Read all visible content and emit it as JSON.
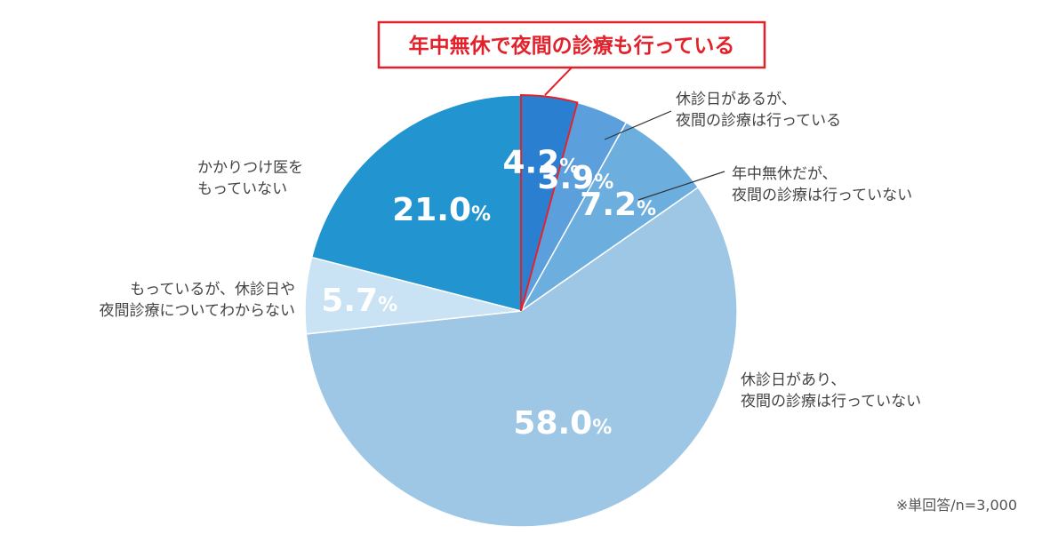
{
  "chart_data": {
    "type": "pie",
    "headline": "年中無休で夜間の診療も行っている",
    "note": "※単回答/n=3,000",
    "percent_sign": "%",
    "slices": [
      {
        "label": "年中無休で夜間の診療も行っている",
        "value": 4.2,
        "value_text": "4.2",
        "color": "#2a7fd1",
        "highlight": true
      },
      {
        "label": "休診日があるが、\n夜間の診療は行っている",
        "value": 3.9,
        "value_text": "3.9",
        "color": "#5b9fdc"
      },
      {
        "label": "年中無休だが、\n夜間の診療は行っていない",
        "value": 7.2,
        "value_text": "7.2",
        "color": "#6caede"
      },
      {
        "label": "休診日があり、\n夜間の診療は行っていない",
        "value": 58.0,
        "value_text": "58.0",
        "color": "#9ec7e6"
      },
      {
        "label": "もっているが、休診日や\n夜間診療についてわからない",
        "value": 5.7,
        "value_text": "5.7",
        "color": "#c9e2f4"
      },
      {
        "label": "かかりつけ医を\nもっていない",
        "value": 21.0,
        "value_text": "21.0",
        "color": "#2294cf"
      }
    ],
    "highlight_color": "#e2212b"
  }
}
